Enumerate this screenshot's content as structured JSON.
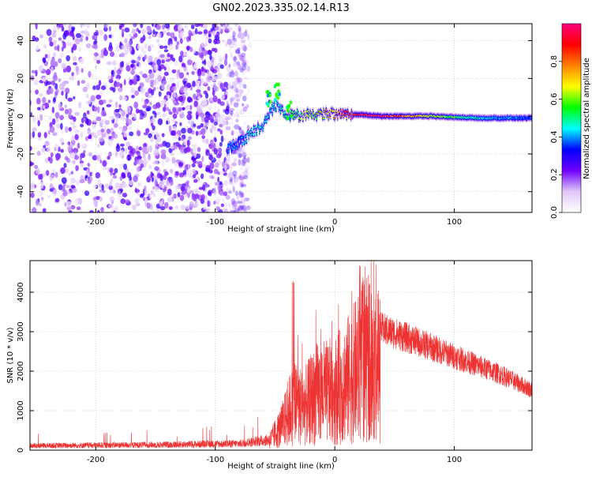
{
  "title": "GN02.2023.335.02.14.R13",
  "chart_data": [
    {
      "type": "heatmap",
      "xlabel": "Height of straight line (km)",
      "ylabel": "Frequency (Hz)",
      "xlim": [
        -255,
        165
      ],
      "ylim": [
        -51,
        49
      ],
      "xticks": [
        -200,
        -100,
        0,
        100
      ],
      "yticks": [
        -40,
        -20,
        0,
        20,
        40
      ],
      "colorbar": {
        "label": "Normalized spectral amplitude",
        "range": [
          0,
          1
        ],
        "ticks": [
          "0.0",
          "0.2",
          "0.4",
          "0.6",
          "0.8"
        ],
        "colors": [
          "#ffffff",
          "#e0c8f8",
          "#7000ff",
          "#0000ff",
          "#00ffff",
          "#00ff00",
          "#ffff00",
          "#ff8000",
          "#ff0000",
          "#ff0080"
        ]
      },
      "features": {
        "noise_region_x": [
          -255,
          -73
        ],
        "noise_amplitude": 0.2,
        "track": [
          {
            "x": -90,
            "y": -17,
            "amplitude": 0.4
          },
          {
            "x": -80,
            "y": -14,
            "amplitude": 0.35
          },
          {
            "x": -70,
            "y": -9,
            "amplitude": 0.5
          },
          {
            "x": -60,
            "y": -5,
            "amplitude": 0.45
          },
          {
            "x": -50,
            "y": 6,
            "amplitude": 0.45
          },
          {
            "x": -40,
            "y": 1,
            "amplitude": 0.5
          },
          {
            "x": -30,
            "y": 0,
            "amplitude": 0.6
          },
          {
            "x": -15,
            "y": 1,
            "amplitude": 0.65
          },
          {
            "x": 0,
            "y": 1,
            "amplitude": 0.75
          },
          {
            "x": 15,
            "y": 1,
            "amplitude": 0.95
          },
          {
            "x": 40,
            "y": 0,
            "amplitude": 0.95
          },
          {
            "x": 80,
            "y": 0,
            "amplitude": 0.65
          },
          {
            "x": 120,
            "y": -1,
            "amplitude": 0.45
          },
          {
            "x": 165,
            "y": -1,
            "amplitude": 0.35
          }
        ]
      }
    },
    {
      "type": "line",
      "xlabel": "Height of straight line (km)",
      "ylabel": "SNR (10 * v/v)",
      "xlim": [
        -255,
        165
      ],
      "ylim": [
        0,
        4800
      ],
      "xticks": [
        -200,
        -100,
        0,
        100
      ],
      "yticks": [
        0,
        1000,
        2000,
        3000,
        4000
      ],
      "color": "#ee3333",
      "envelope": [
        {
          "x": -255,
          "y": 150
        },
        {
          "x": -150,
          "y": 180
        },
        {
          "x": -80,
          "y": 220
        },
        {
          "x": -55,
          "y": 350
        },
        {
          "x": -45,
          "y": 900
        },
        {
          "x": -35,
          "y": 1800
        },
        {
          "x": -25,
          "y": 1700
        },
        {
          "x": -15,
          "y": 2200
        },
        {
          "x": 0,
          "y": 2300
        },
        {
          "x": 10,
          "y": 2700
        },
        {
          "x": 20,
          "y": 3200
        },
        {
          "x": 30,
          "y": 3600
        },
        {
          "x": 38,
          "y": 3250
        },
        {
          "x": 60,
          "y": 3000
        },
        {
          "x": 100,
          "y": 2500
        },
        {
          "x": 140,
          "y": 2000
        },
        {
          "x": 165,
          "y": 1600
        }
      ]
    }
  ]
}
